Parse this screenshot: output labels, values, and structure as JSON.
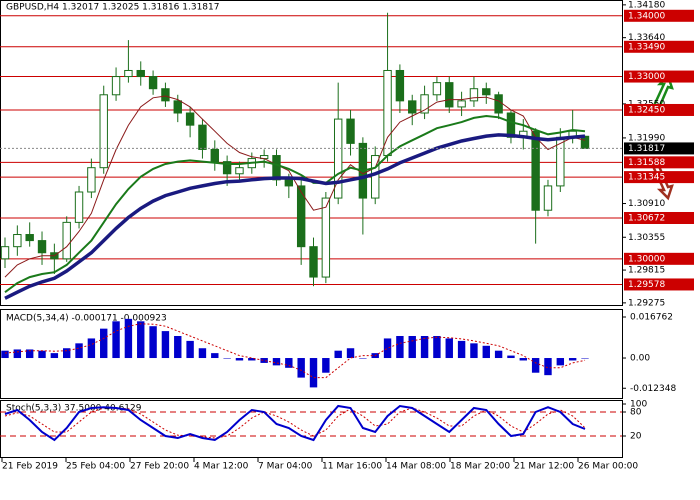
{
  "chart_data": {
    "type": "candlestick",
    "title": "GBPUSD,H4  1.32017 1.32025 1.31816 1.31817",
    "ylim": [
      1.2924,
      1.3426
    ],
    "yticks": [
      {
        "value": 1.3418,
        "label": "1.34180"
      },
      {
        "value": 1.3364,
        "label": "1.33640"
      },
      {
        "value": 1.3255,
        "label": "1.32550"
      },
      {
        "value": 1.3199,
        "label": "1.31990"
      },
      {
        "value": 1.3091,
        "label": "1.30910"
      },
      {
        "value": 1.30355,
        "label": "1.30355"
      },
      {
        "value": 1.29815,
        "label": "1.29815"
      },
      {
        "value": 1.29275,
        "label": "1.29275"
      }
    ],
    "levels": [
      {
        "value": 1.34,
        "label": "1.34000"
      },
      {
        "value": 1.3349,
        "label": "1.33490"
      },
      {
        "value": 1.33,
        "label": "1.33000"
      },
      {
        "value": 1.3245,
        "label": "1.32450"
      },
      {
        "value": 1.31588,
        "label": "1.31588"
      },
      {
        "value": 1.31345,
        "label": "1.31345"
      },
      {
        "value": 1.30672,
        "label": "1.30672"
      },
      {
        "value": 1.3,
        "label": "1.30000"
      },
      {
        "value": 1.29578,
        "label": "1.29578"
      }
    ],
    "level_color": "#cc0000",
    "current_price": {
      "value": 1.31817,
      "label": "1.31817"
    },
    "open": [
      1.3,
      1.302,
      1.304,
      1.303,
      1.301,
      1.3,
      1.306,
      1.311,
      1.315,
      1.327,
      1.33,
      1.331,
      1.33,
      1.328,
      1.326,
      1.324,
      1.322,
      1.318,
      1.316,
      1.314,
      1.315,
      1.3165,
      1.317,
      1.313,
      1.312,
      1.302,
      1.297,
      1.31,
      1.323,
      1.319,
      1.31,
      1.317,
      1.331,
      1.326,
      1.324,
      1.327,
      1.329,
      1.325,
      1.326,
      1.328,
      1.327,
      1.324,
      1.32,
      1.321,
      1.308,
      1.312,
      1.32,
      1.32017
    ],
    "high": [
      1.3035,
      1.3055,
      1.306,
      1.3045,
      1.3025,
      1.307,
      1.312,
      1.3165,
      1.3285,
      1.3315,
      1.336,
      1.3325,
      1.331,
      1.329,
      1.327,
      1.325,
      1.323,
      1.3195,
      1.317,
      1.316,
      1.3175,
      1.318,
      1.318,
      1.314,
      1.313,
      1.3035,
      1.311,
      1.329,
      1.3245,
      1.32,
      1.3185,
      1.3405,
      1.332,
      1.327,
      1.3285,
      1.33,
      1.33,
      1.3275,
      1.33,
      1.329,
      1.3275,
      1.3245,
      1.323,
      1.3215,
      1.313,
      1.3215,
      1.3245,
      1.32025
    ],
    "low": [
      1.2985,
      1.3005,
      1.302,
      1.299,
      1.2975,
      1.2995,
      1.305,
      1.31,
      1.314,
      1.326,
      1.329,
      1.3285,
      1.327,
      1.325,
      1.3225,
      1.32,
      1.3165,
      1.3145,
      1.312,
      1.313,
      1.314,
      1.315,
      1.312,
      1.31,
      1.299,
      1.2955,
      1.296,
      1.309,
      1.317,
      1.304,
      1.309,
      1.316,
      1.324,
      1.322,
      1.323,
      1.326,
      1.324,
      1.3235,
      1.325,
      1.3255,
      1.323,
      1.319,
      1.318,
      1.3025,
      1.307,
      1.311,
      1.319,
      1.31816
    ],
    "close": [
      1.302,
      1.304,
      1.303,
      1.301,
      1.3,
      1.306,
      1.311,
      1.315,
      1.327,
      1.33,
      1.331,
      1.33,
      1.328,
      1.326,
      1.324,
      1.322,
      1.318,
      1.316,
      1.314,
      1.315,
      1.3165,
      1.317,
      1.313,
      1.312,
      1.302,
      1.297,
      1.31,
      1.323,
      1.319,
      1.31,
      1.317,
      1.331,
      1.326,
      1.324,
      1.327,
      1.329,
      1.325,
      1.326,
      1.328,
      1.327,
      1.324,
      1.32,
      1.321,
      1.308,
      1.312,
      1.32,
      1.321,
      1.31817
    ],
    "candle_color": "#1b6e1b",
    "moving_averages": [
      {
        "color": "#8b1a1a",
        "width": 1,
        "values": [
          1.297,
          1.299,
          1.3,
          1.3005,
          1.3005,
          1.302,
          1.3045,
          1.3075,
          1.313,
          1.318,
          1.322,
          1.325,
          1.3265,
          1.3268,
          1.3262,
          1.325,
          1.323,
          1.321,
          1.319,
          1.3175,
          1.3168,
          1.3165,
          1.3155,
          1.3145,
          1.311,
          1.308,
          1.3085,
          1.313,
          1.3155,
          1.314,
          1.315,
          1.32,
          1.3225,
          1.3235,
          1.3245,
          1.3258,
          1.3262,
          1.3262,
          1.3265,
          1.3266,
          1.326,
          1.3245,
          1.3235,
          1.32,
          1.318,
          1.319,
          1.32,
          1.3195
        ]
      },
      {
        "color": "#1a7a1a",
        "width": 2,
        "values": [
          1.2945,
          1.296,
          1.297,
          1.2975,
          1.2978,
          1.299,
          1.301,
          1.303,
          1.306,
          1.309,
          1.3115,
          1.3135,
          1.3148,
          1.3156,
          1.316,
          1.3162,
          1.316,
          1.3158,
          1.3156,
          1.3156,
          1.3158,
          1.316,
          1.3155,
          1.3148,
          1.3138,
          1.3125,
          1.3125,
          1.314,
          1.315,
          1.3145,
          1.315,
          1.317,
          1.3185,
          1.3195,
          1.3205,
          1.3215,
          1.322,
          1.3225,
          1.3232,
          1.3235,
          1.3233,
          1.3225,
          1.322,
          1.3212,
          1.3205,
          1.3208,
          1.3212,
          1.321
        ]
      },
      {
        "color": "#1a1a80",
        "width": 3.5,
        "values": [
          1.2935,
          1.2945,
          1.2955,
          1.2962,
          1.2968,
          1.298,
          1.2995,
          1.301,
          1.303,
          1.305,
          1.3068,
          1.3083,
          1.3095,
          1.3104,
          1.311,
          1.3116,
          1.312,
          1.3124,
          1.3127,
          1.3128,
          1.313,
          1.3132,
          1.3133,
          1.3133,
          1.3132,
          1.3128,
          1.3124,
          1.3126,
          1.313,
          1.3134,
          1.314,
          1.3148,
          1.3158,
          1.3166,
          1.3174,
          1.3182,
          1.3188,
          1.3194,
          1.3198,
          1.3202,
          1.3204,
          1.3203,
          1.3201,
          1.3198,
          1.3196,
          1.3198,
          1.32,
          1.3202
        ]
      }
    ],
    "xtick_labels": [
      "21 Feb 2019",
      "25 Feb 04:00",
      "27 Feb 20:00",
      "4 Mar 12:00",
      "7 Mar 04:00",
      "11 Mar 16:00",
      "14 Mar 08:00",
      "18 Mar 20:00",
      "21 Mar 12:00",
      "26 Mar 00:00"
    ],
    "macd": {
      "title": "MACD(5,34,4) -0.000171 -0.000923",
      "ylim": [
        -0.01633,
        0.01962
      ],
      "yticks": [
        0.016762,
        {
          "value": 0,
          "label": "0.00"
        },
        -0.012348
      ],
      "histogram_color": "#0000cc",
      "signal_color": "#cc0000",
      "histogram": [
        0.003,
        0.0035,
        0.0035,
        0.003,
        0.002,
        0.004,
        0.006,
        0.008,
        0.012,
        0.015,
        0.016,
        0.015,
        0.013,
        0.011,
        0.009,
        0.007,
        0.004,
        0.002,
        0.0,
        -0.001,
        -0.001,
        -0.002,
        -0.003,
        -0.004,
        -0.008,
        -0.012,
        -0.006,
        0.003,
        0.004,
        0.0,
        0.002,
        0.008,
        0.009,
        0.009,
        0.009,
        0.009,
        0.008,
        0.007,
        0.006,
        0.005,
        0.003,
        0.001,
        -0.001,
        -0.006,
        -0.007,
        -0.003,
        -0.001,
        -0.000171
      ],
      "signal": [
        0.002,
        0.0025,
        0.003,
        0.003,
        0.0028,
        0.003,
        0.004,
        0.0055,
        0.008,
        0.011,
        0.013,
        0.014,
        0.0138,
        0.013,
        0.011,
        0.009,
        0.007,
        0.005,
        0.003,
        0.001,
        0.0,
        -0.001,
        -0.002,
        -0.003,
        -0.005,
        -0.008,
        -0.008,
        -0.004,
        0.0,
        0.001,
        0.001,
        0.004,
        0.006,
        0.007,
        0.008,
        0.0085,
        0.0083,
        0.0078,
        0.007,
        0.006,
        0.005,
        0.003,
        0.001,
        -0.002,
        -0.004,
        -0.004,
        -0.002,
        -0.000923
      ]
    },
    "stoch": {
      "title": "Stoch(5,3,3) 37.5000 40.6129",
      "ylim": [
        -35,
        110
      ],
      "yticks": [
        100,
        80,
        20
      ],
      "levels": [
        80,
        20
      ],
      "main_color": "#0000cc",
      "signal_color": "#cc0000",
      "main": [
        75,
        85,
        60,
        30,
        10,
        40,
        80,
        90,
        92,
        90,
        85,
        60,
        40,
        20,
        15,
        25,
        15,
        10,
        30,
        60,
        85,
        80,
        50,
        40,
        20,
        10,
        60,
        95,
        90,
        40,
        30,
        70,
        95,
        90,
        70,
        50,
        30,
        60,
        90,
        85,
        50,
        20,
        25,
        80,
        92,
        80,
        50,
        37.5
      ],
      "signal": [
        70,
        78,
        70,
        50,
        30,
        30,
        55,
        80,
        90,
        90,
        88,
        75,
        55,
        35,
        22,
        20,
        18,
        15,
        20,
        40,
        65,
        80,
        70,
        55,
        35,
        20,
        35,
        70,
        88,
        70,
        45,
        50,
        80,
        90,
        80,
        65,
        45,
        45,
        70,
        85,
        70,
        45,
        30,
        50,
        75,
        85,
        70,
        40.6129
      ]
    }
  }
}
